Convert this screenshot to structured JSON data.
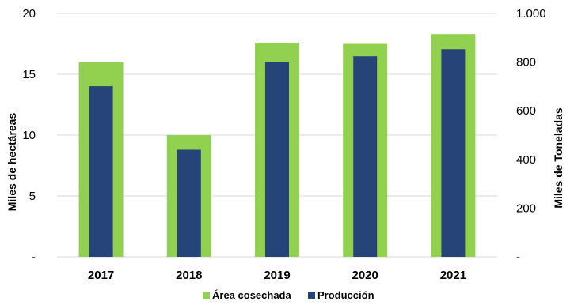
{
  "chart_data": {
    "type": "bar",
    "categories": [
      "2017",
      "2018",
      "2019",
      "2020",
      "2021"
    ],
    "series": [
      {
        "name": "Área cosechada",
        "axis": "left",
        "color": "#92d050",
        "values": [
          16.0,
          10.0,
          17.6,
          17.5,
          18.3
        ]
      },
      {
        "name": "Producción",
        "axis": "right",
        "color": "#264478",
        "values": [
          701,
          440,
          799,
          824,
          853
        ]
      }
    ],
    "ylabel": "Miles de hectáreas",
    "y2label": "Miles de Toneladas",
    "ylim": [
      0,
      20
    ],
    "y2lim": [
      0,
      1000
    ],
    "yticks": [
      {
        "value": 0,
        "label": "-"
      },
      {
        "value": 5,
        "label": "5"
      },
      {
        "value": 10,
        "label": "10"
      },
      {
        "value": 15,
        "label": "15"
      },
      {
        "value": 20,
        "label": "20"
      }
    ],
    "y2ticks": [
      {
        "value": 0,
        "label": "-"
      },
      {
        "value": 200,
        "label": "200"
      },
      {
        "value": 400,
        "label": "400"
      },
      {
        "value": 600,
        "label": "600"
      },
      {
        "value": 800,
        "label": "800"
      },
      {
        "value": 1000,
        "label": "1.000"
      }
    ],
    "grid": true,
    "legend_position": "bottom"
  }
}
